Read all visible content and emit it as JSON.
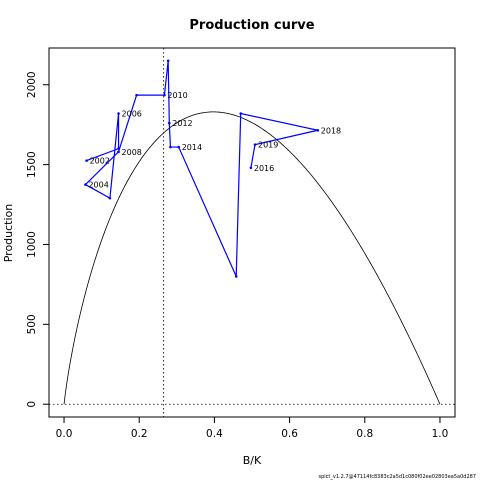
{
  "chart_data": {
    "type": "line",
    "title": "Production curve",
    "xlabel": "B/K",
    "ylabel": "Production",
    "footnote": "spict_v1.2.7@47114fc8383c2a5d1c080f02ee02803ea5a0d287",
    "xlim": [
      -0.04,
      1.04
    ],
    "ylim": [
      -80,
      2230
    ],
    "x_ticks": [
      0.0,
      0.2,
      0.4,
      0.6,
      0.8,
      1.0
    ],
    "x_tick_labels": [
      "0.0",
      "0.2",
      "0.4",
      "0.6",
      "0.8",
      "1.0"
    ],
    "y_ticks": [
      0,
      500,
      1000,
      1500,
      2000
    ],
    "y_tick_labels": [
      "0",
      "500",
      "1000",
      "1500",
      "2000"
    ],
    "bmsy_k": 0.265,
    "msy": 1830,
    "curve_n": 1.17,
    "series": [
      {
        "color": "#0000ff",
        "x": [
          0.06,
          0.145,
          0.145,
          0.122,
          0.057,
          0.145,
          0.193,
          0.267,
          0.277,
          0.28,
          0.283,
          0.305,
          0.458,
          0.47,
          0.675,
          0.508,
          0.497
        ],
        "y": [
          1525,
          1600,
          1820,
          1290,
          1375,
          1580,
          1935,
          1935,
          2150,
          1760,
          1610,
          1610,
          800,
          1820,
          1715,
          1625,
          1480
        ],
        "labels": [
          "2002",
          "",
          "2006",
          "",
          "2004",
          "2008",
          "",
          "2010",
          "",
          "2012",
          "",
          "2014",
          "",
          "",
          "2018",
          "2019",
          "2016"
        ]
      }
    ]
  }
}
